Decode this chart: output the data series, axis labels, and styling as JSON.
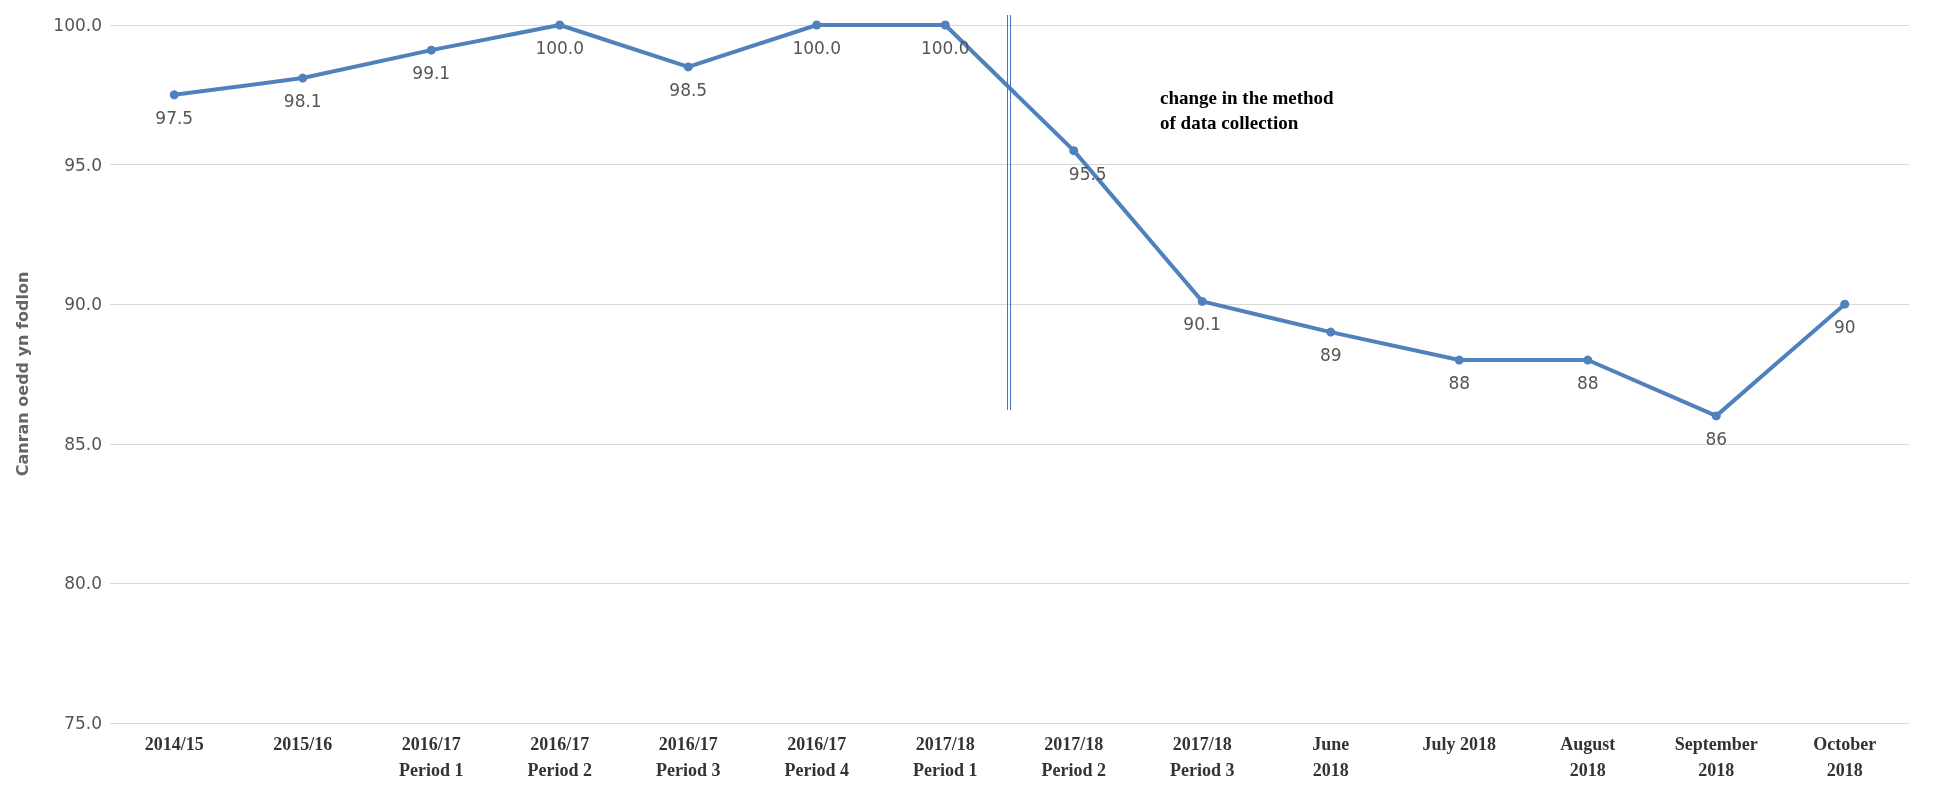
{
  "chart_data": {
    "type": "line",
    "ylabel": "Canran oedd yn fodlon",
    "categories": [
      "2014/15",
      "2015/16",
      "2016/17\nPeriod 1",
      "2016/17\nPeriod 2",
      "2016/17\nPeriod 3",
      "2016/17\nPeriod 4",
      "2017/18\nPeriod 1",
      "2017/18\nPeriod 2",
      "2017/18\nPeriod 3",
      "June\n2018",
      "July 2018",
      "August\n2018",
      "September\n2018",
      "October\n2018"
    ],
    "series": [
      {
        "color": "#4f81bd",
        "values": [
          97.5,
          98.1,
          99.1,
          100.0,
          98.5,
          100.0,
          100.0,
          95.5,
          90.1,
          89,
          88,
          88,
          86,
          90
        ],
        "value_labels": [
          "97.5",
          "98.1",
          "99.1",
          "100.0",
          "98.5",
          "100.0",
          "100.0",
          "95.5",
          "90.1",
          "89",
          "88",
          "88",
          "86",
          "90"
        ]
      }
    ],
    "ylim": [
      75,
      100
    ],
    "yticks": [
      {
        "value": 75,
        "label": "75.0"
      },
      {
        "value": 80,
        "label": "80.0"
      },
      {
        "value": 85,
        "label": "85.0"
      },
      {
        "value": 90,
        "label": "90.0"
      },
      {
        "value": 95,
        "label": "95.0"
      },
      {
        "value": 100,
        "label": "100.0"
      }
    ],
    "annotations": [
      "change in the method\nof data collection"
    ],
    "grid": "y",
    "marker": "circle",
    "line_style": "solid"
  }
}
